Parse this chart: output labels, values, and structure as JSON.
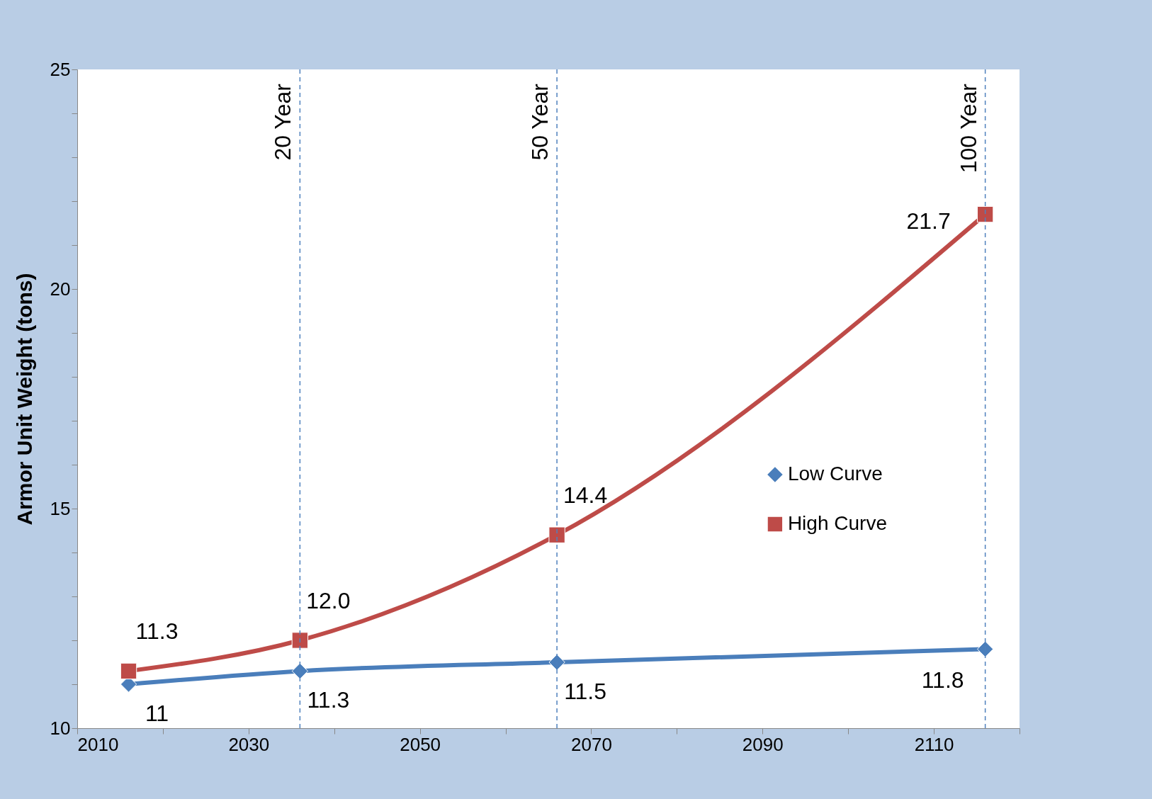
{
  "chart_data": {
    "type": "line",
    "ylabel": "Armor Unit Weight (tons)",
    "x": [
      2016,
      2036,
      2066,
      2116
    ],
    "series": [
      {
        "name": "Low Curve",
        "color": "#4a7ebb",
        "marker": "diamond",
        "values": [
          11,
          11.3,
          11.5,
          11.8
        ],
        "value_labels": [
          "11",
          "11.3",
          "11.5",
          "11.8"
        ]
      },
      {
        "name": "High Curve",
        "color": "#be4b48",
        "marker": "square",
        "values": [
          11.3,
          12.0,
          14.4,
          21.7
        ],
        "value_labels": [
          "11.3",
          "12.0",
          "14.4",
          "21.7"
        ]
      }
    ],
    "xlim": [
      2010,
      2120
    ],
    "xticks": [
      2010,
      {
        "value": 2020,
        "label": null
      },
      2030,
      {
        "value": 2040,
        "label": null
      },
      2050,
      {
        "value": 2060,
        "label": null
      },
      2070,
      {
        "value": 2080,
        "label": null
      },
      2090,
      {
        "value": 2100,
        "label": null
      },
      2110,
      {
        "value": 2120,
        "label": null
      }
    ],
    "ylim": [
      10,
      25
    ],
    "yticks": [
      10,
      {
        "value": 11,
        "label": null
      },
      {
        "value": 12,
        "label": null
      },
      {
        "value": 13,
        "label": null
      },
      {
        "value": 14,
        "label": null
      },
      15,
      {
        "value": 16,
        "label": null
      },
      {
        "value": 17,
        "label": null
      },
      {
        "value": 18,
        "label": null
      },
      {
        "value": 19,
        "label": null
      },
      20,
      {
        "value": 21,
        "label": null
      },
      {
        "value": 22,
        "label": null
      },
      {
        "value": 23,
        "label": null
      },
      {
        "value": 24,
        "label": null
      },
      25
    ],
    "ref_lines": [
      {
        "axis": "x",
        "value": 2036,
        "label": "20 Year",
        "color": "#4f81bd",
        "line_style": "dashed"
      },
      {
        "axis": "x",
        "value": 2066,
        "label": "50 Year",
        "color": "#4f81bd",
        "line_style": "dashed"
      },
      {
        "axis": "x",
        "value": 2116,
        "label": "100 Year",
        "color": "#4f81bd",
        "line_style": "dashed"
      }
    ],
    "grid": false,
    "legend": "right",
    "line_style": "solid"
  }
}
